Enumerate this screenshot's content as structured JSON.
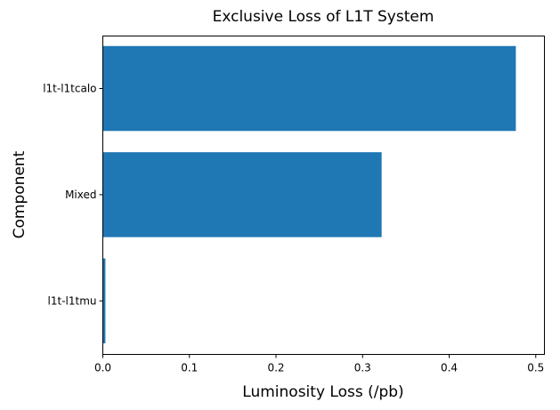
{
  "chart_data": {
    "type": "bar",
    "orientation": "horizontal",
    "title": "Exclusive Loss of L1T System",
    "xlabel": "Luminosity Loss (/pb)",
    "ylabel": "Component",
    "categories": [
      "l1t-l1tcalo",
      "Mixed",
      "l1t-l1tmu"
    ],
    "values": [
      0.477,
      0.322,
      0.003
    ],
    "xlim": [
      0,
      0.51
    ],
    "xticks": [
      "0.0",
      "0.1",
      "0.2",
      "0.3",
      "0.4",
      "0.5"
    ],
    "grid": false,
    "legend": "none",
    "bar_color": "#1f77b4"
  }
}
